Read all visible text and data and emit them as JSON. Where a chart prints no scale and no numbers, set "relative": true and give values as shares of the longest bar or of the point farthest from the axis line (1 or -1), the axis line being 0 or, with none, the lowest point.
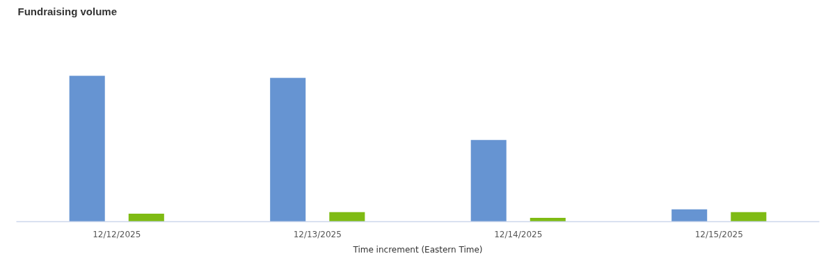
{
  "chart_data": {
    "type": "bar",
    "title": "Fundraising volume",
    "xlabel": "Time increment (Eastern Time)",
    "categories": [
      "12/12/2025",
      "12/13/2025",
      "12/14/2025",
      "12/15/2025"
    ],
    "relative": true,
    "series": [
      {
        "color": "#6694d2",
        "values": [
          1,
          0.986,
          0.56,
          0.084
        ]
      },
      {
        "color": "#7fbb14",
        "values": [
          0.055,
          0.065,
          0.026,
          0.065
        ]
      }
    ]
  }
}
